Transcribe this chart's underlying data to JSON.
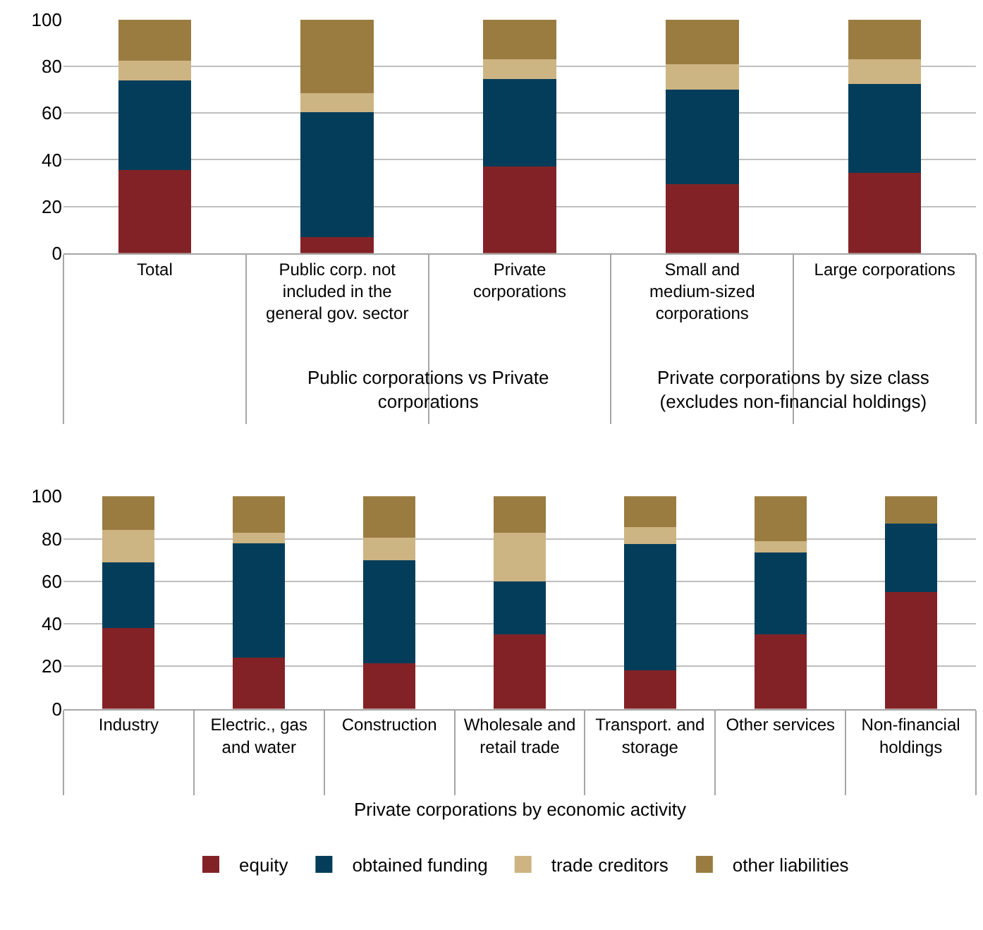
{
  "chart_data": [
    {
      "type": "bar",
      "stacked": true,
      "categories": [
        "Total",
        "Public corp. not included in the general gov. sector",
        "Private corporations",
        "Small and medium-sized corporations",
        "Large corporations"
      ],
      "series": [
        {
          "name": "equity",
          "color": "#832226",
          "values": [
            35.5,
            7,
            37,
            29.5,
            34.5
          ]
        },
        {
          "name": "obtained funding",
          "color": "#033d5a",
          "values": [
            38.5,
            53.5,
            37.5,
            40.5,
            38
          ]
        },
        {
          "name": "trade creditors",
          "color": "#cdb483",
          "values": [
            8.5,
            8,
            8.5,
            11,
            10.5
          ]
        },
        {
          "name": "other liabilities",
          "color": "#9a7c41",
          "values": [
            17.5,
            31.5,
            17,
            19,
            17
          ]
        }
      ],
      "annotations": [
        "Public corporations vs Private corporations",
        "Private corporations by size class (excludes non-financial holdings)"
      ],
      "ylim": [
        0,
        100
      ],
      "yticks": [
        0,
        20,
        40,
        60,
        80,
        100
      ],
      "grid": "y",
      "legend": "bottom"
    },
    {
      "type": "bar",
      "stacked": true,
      "categories": [
        "Industry",
        "Electric., gas and water",
        "Construction",
        "Wholesale and retail trade",
        "Transport. and storage",
        "Other services",
        "Non-financial holdings"
      ],
      "series": [
        {
          "color": "#832226",
          "values": [
            38,
            24,
            21.5,
            35,
            18,
            35,
            55
          ]
        },
        {
          "color": "#033d5a",
          "values": [
            31,
            54,
            48.5,
            25,
            59.5,
            38.5,
            32
          ]
        },
        {
          "color": "#cdb483",
          "values": [
            15,
            5,
            10.5,
            23,
            8,
            5.5,
            0
          ]
        },
        {
          "color": "#9a7c41",
          "values": [
            16,
            17,
            19.5,
            17,
            14.5,
            21,
            13
          ]
        }
      ],
      "annotations": [
        "Private corporations by economic activity"
      ],
      "ylim": [
        0,
        100
      ],
      "yticks": [
        0,
        20,
        40,
        60,
        80,
        100
      ],
      "grid": "y"
    }
  ]
}
